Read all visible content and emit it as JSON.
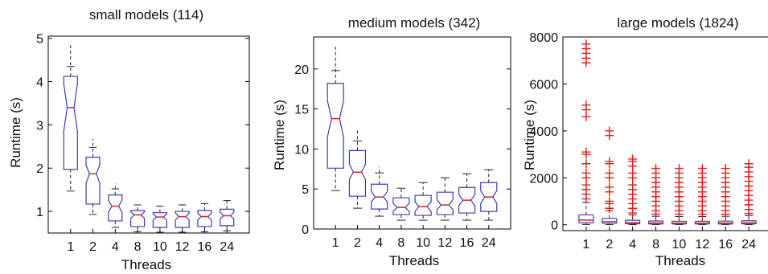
{
  "figure": {
    "line_color": "#3b3bb5",
    "median_color": "#e02020",
    "outlier_color": "#e02020"
  },
  "chart_data": [
    {
      "type": "box",
      "title": "small models (114)",
      "xlabel": "Threads",
      "ylabel": "Runtime (s)",
      "categories": [
        "1",
        "2",
        "4",
        "8",
        "10",
        "12",
        "16",
        "24"
      ],
      "ylim": [
        0.5,
        5.05
      ],
      "yticks": [
        1,
        2,
        3,
        4,
        5
      ],
      "boxes": [
        {
          "min": 1.47,
          "q1": 1.97,
          "median": 3.4,
          "q3": 4.12,
          "max": 4.85,
          "upper_cap": 4.35,
          "notch": [
            2.85,
            3.95
          ]
        },
        {
          "min": 0.93,
          "q1": 1.17,
          "median": 1.87,
          "q3": 2.25,
          "max": 2.68,
          "upper_cap": 2.48,
          "notch": [
            1.65,
            2.07
          ]
        },
        {
          "min": 0.63,
          "q1": 0.78,
          "median": 1.12,
          "q3": 1.38,
          "max": 1.65,
          "upper_cap": 1.52,
          "notch": [
            0.98,
            1.26
          ]
        },
        {
          "min": 0.53,
          "q1": 0.65,
          "median": 0.92,
          "q3": 1.02,
          "max": 1.15,
          "upper_cap": 1.15,
          "notch": [
            0.84,
            0.99
          ]
        },
        {
          "min": 0.52,
          "q1": 0.63,
          "median": 0.87,
          "q3": 0.97,
          "max": 1.12,
          "upper_cap": 1.12,
          "notch": [
            0.8,
            0.94
          ]
        },
        {
          "min": 0.52,
          "q1": 0.63,
          "median": 0.88,
          "q3": 1.0,
          "max": 1.15,
          "upper_cap": 1.15,
          "notch": [
            0.8,
            0.96
          ]
        },
        {
          "min": 0.53,
          "q1": 0.65,
          "median": 0.88,
          "q3": 1.02,
          "max": 1.18,
          "upper_cap": 1.18,
          "notch": [
            0.8,
            0.96
          ]
        },
        {
          "min": 0.55,
          "q1": 0.67,
          "median": 0.9,
          "q3": 1.05,
          "max": 1.25,
          "upper_cap": 1.25,
          "notch": [
            0.83,
            0.98
          ]
        }
      ]
    },
    {
      "type": "box",
      "title": "medium models (342)",
      "xlabel": "Threads",
      "ylabel": "Runtime (s)",
      "categories": [
        "1",
        "2",
        "4",
        "8",
        "10",
        "12",
        "16",
        "24"
      ],
      "ylim": [
        0,
        24
      ],
      "yticks": [
        0,
        5,
        10,
        15,
        20
      ],
      "boxes": [
        {
          "min": 4.8,
          "q1": 7.6,
          "median": 13.8,
          "q3": 18.2,
          "max": 22.8,
          "upper_cap": 19.8,
          "notch": [
            11.5,
            16.0
          ]
        },
        {
          "min": 2.6,
          "q1": 4.1,
          "median": 7.1,
          "q3": 9.8,
          "max": 12.3,
          "upper_cap": 11.0,
          "notch": [
            6.2,
            8.1
          ]
        },
        {
          "min": 1.6,
          "q1": 2.5,
          "median": 4.0,
          "q3": 5.6,
          "max": 7.8,
          "upper_cap": 7.0,
          "notch": [
            3.4,
            4.7
          ]
        },
        {
          "min": 1.1,
          "q1": 1.8,
          "median": 2.7,
          "q3": 3.9,
          "max": 5.1,
          "upper_cap": 5.1,
          "notch": [
            2.2,
            3.2
          ]
        },
        {
          "min": 1.1,
          "q1": 1.7,
          "median": 2.8,
          "q3": 4.2,
          "max": 5.8,
          "upper_cap": 5.8,
          "notch": [
            2.2,
            3.4
          ]
        },
        {
          "min": 1.1,
          "q1": 1.8,
          "median": 3.0,
          "q3": 4.6,
          "max": 6.4,
          "upper_cap": 6.4,
          "notch": [
            2.4,
            3.7
          ]
        },
        {
          "min": 1.1,
          "q1": 2.0,
          "median": 3.6,
          "q3": 5.2,
          "max": 6.9,
          "upper_cap": 6.9,
          "notch": [
            2.9,
            4.3
          ]
        },
        {
          "min": 1.1,
          "q1": 2.2,
          "median": 4.0,
          "q3": 5.8,
          "max": 7.4,
          "upper_cap": 7.4,
          "notch": [
            3.2,
            4.8
          ]
        }
      ]
    },
    {
      "type": "box",
      "title": "large models (1824)",
      "xlabel": "Threads",
      "ylabel": "Runtime (s)",
      "categories": [
        "1",
        "2",
        "4",
        "8",
        "10",
        "12",
        "16",
        "24"
      ],
      "ylim": [
        -250,
        8000
      ],
      "yticks": [
        0,
        2000,
        4000,
        6000,
        8000
      ],
      "boxes": [
        {
          "min": 10,
          "q1": 80,
          "median": 200,
          "q3": 420,
          "max": 950,
          "outliers": [
            1100,
            1300,
            1500,
            1700,
            2000,
            2200,
            2600,
            3000,
            3100,
            4600,
            4900,
            5100,
            6900,
            7100,
            7300,
            7500,
            7700
          ]
        },
        {
          "min": 5,
          "q1": 60,
          "median": 130,
          "q3": 270,
          "max": 600,
          "outliers": [
            700,
            900,
            1000,
            1400,
            1600,
            2000,
            2200,
            2600,
            2700,
            3800,
            4000
          ]
        },
        {
          "min": 5,
          "q1": 40,
          "median": 90,
          "q3": 190,
          "max": 420,
          "outliers": [
            500,
            700,
            900,
            1100,
            1300,
            1500,
            1700,
            2000,
            2200,
            2500,
            2700,
            2800
          ]
        },
        {
          "min": 5,
          "q1": 30,
          "median": 75,
          "q3": 160,
          "max": 360,
          "outliers": [
            450,
            600,
            800,
            1000,
            1200,
            1400,
            1600,
            1800,
            2000,
            2200,
            2400
          ]
        },
        {
          "min": 5,
          "q1": 30,
          "median": 70,
          "q3": 150,
          "max": 350,
          "outliers": [
            450,
            600,
            800,
            1000,
            1200,
            1400,
            1600,
            1800,
            2000,
            2200,
            2400
          ]
        },
        {
          "min": 5,
          "q1": 30,
          "median": 70,
          "q3": 150,
          "max": 350,
          "outliers": [
            450,
            600,
            800,
            1000,
            1200,
            1400,
            1600,
            1800,
            2000,
            2200,
            2400
          ]
        },
        {
          "min": 5,
          "q1": 30,
          "median": 70,
          "q3": 155,
          "max": 360,
          "outliers": [
            450,
            600,
            800,
            1000,
            1200,
            1400,
            1600,
            1800,
            2000,
            2200,
            2400
          ]
        },
        {
          "min": 5,
          "q1": 35,
          "median": 80,
          "q3": 170,
          "max": 390,
          "outliers": [
            480,
            650,
            850,
            1050,
            1250,
            1450,
            1650,
            1850,
            2050,
            2250,
            2450,
            2600
          ]
        }
      ]
    }
  ]
}
